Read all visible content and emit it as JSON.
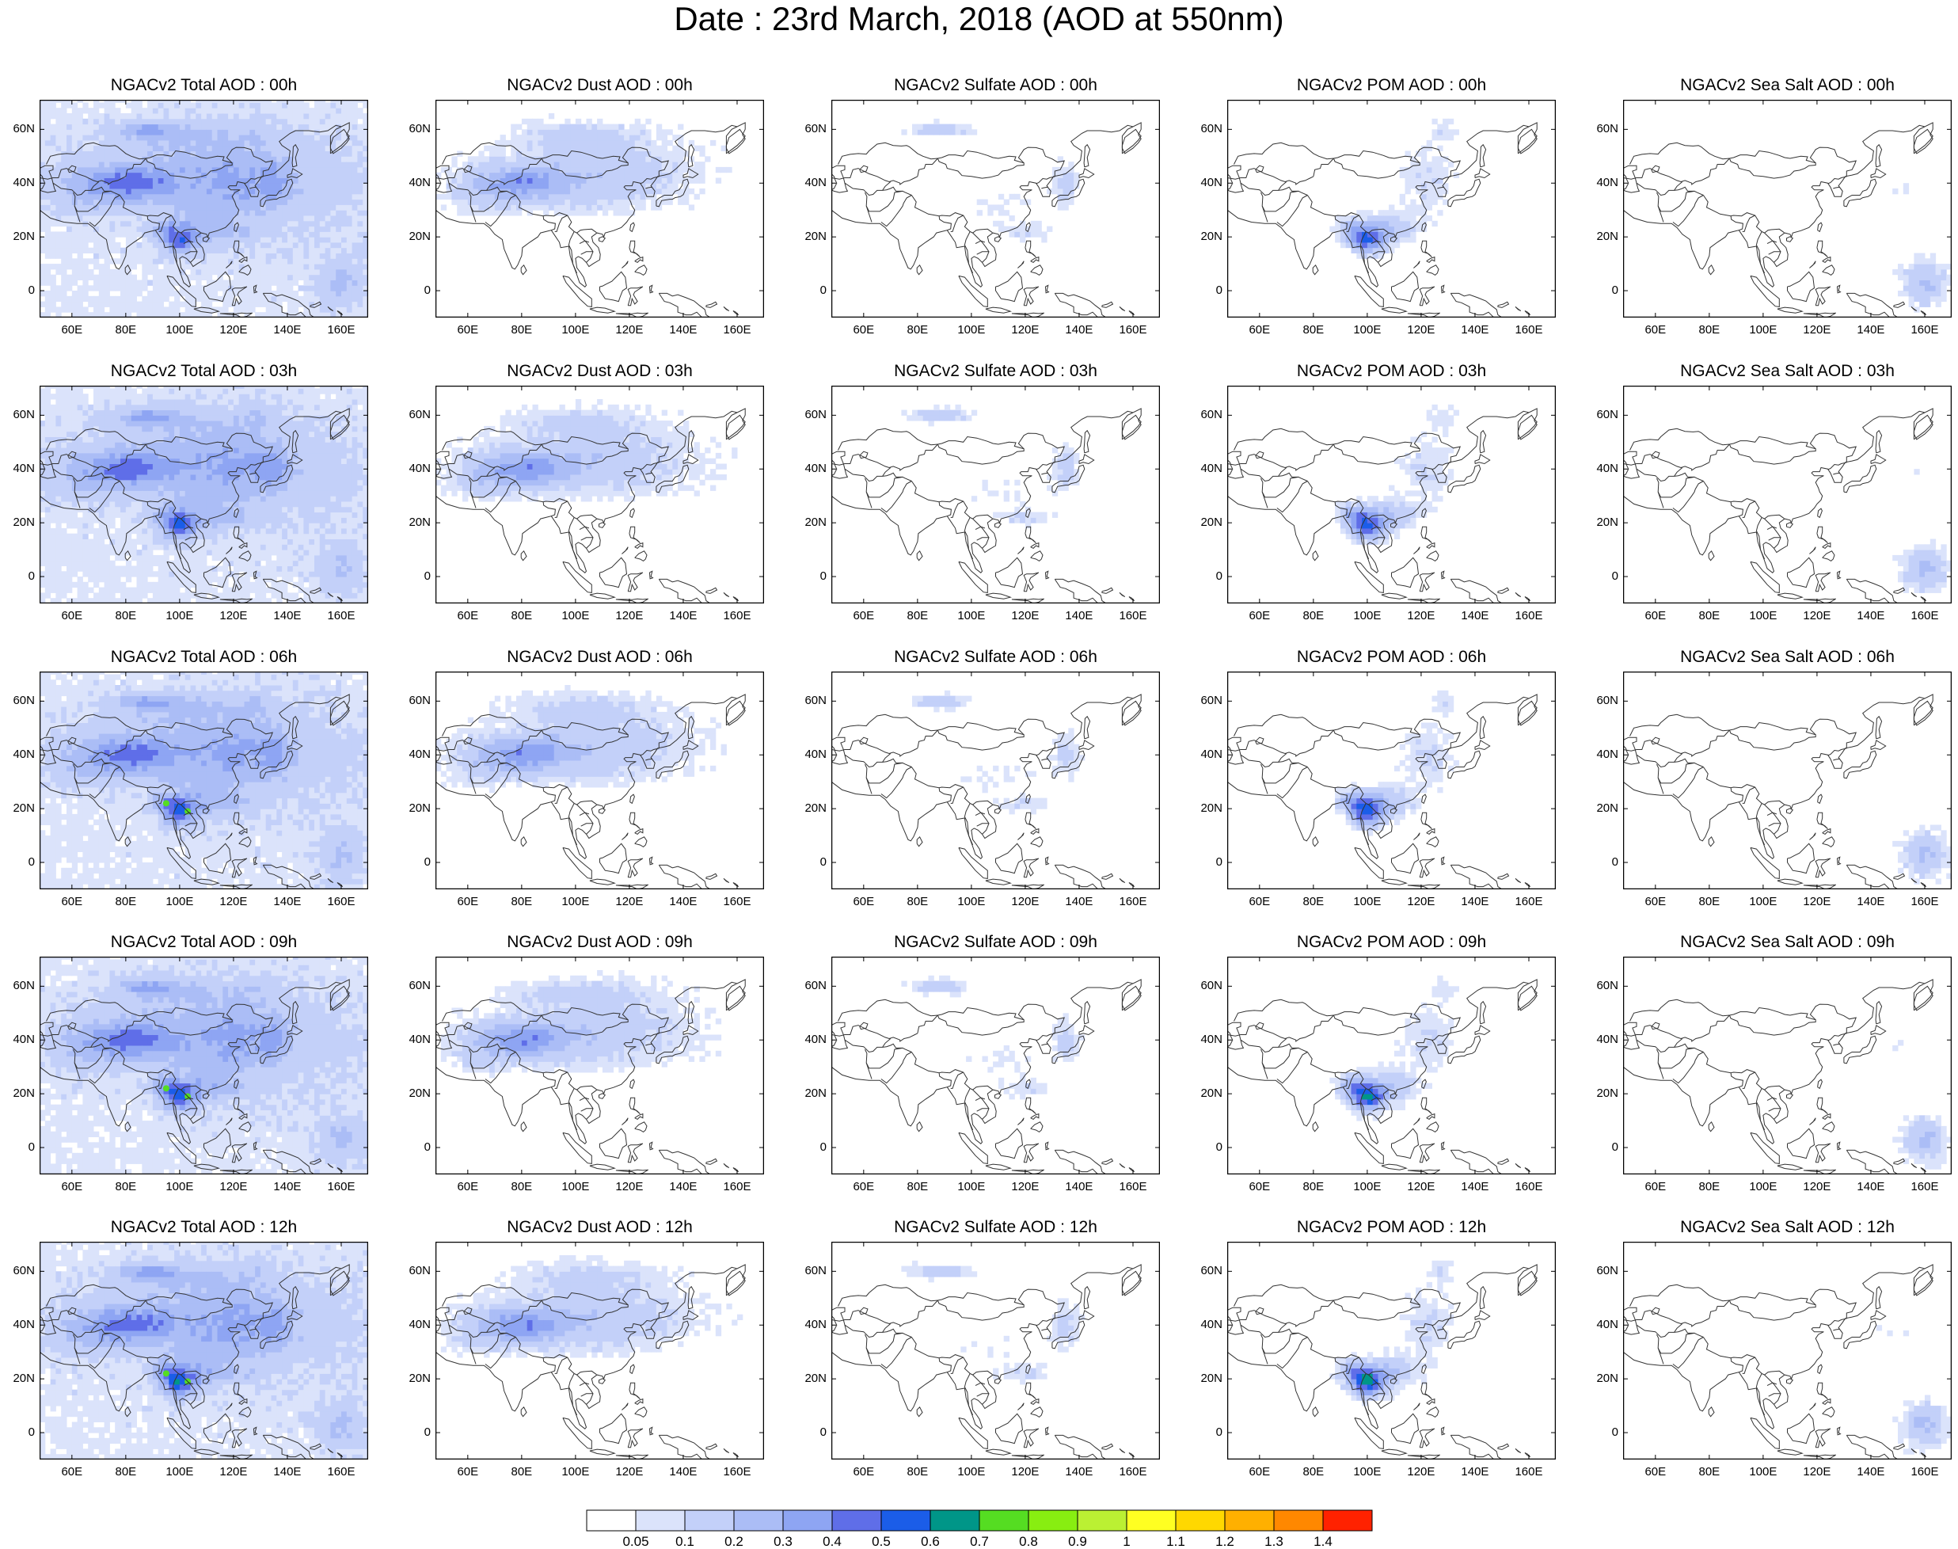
{
  "title": "Date : 23rd March, 2018 (AOD at 550nm)",
  "panels": [
    [
      "NGACv2 Total AOD : 00h",
      "NGACv2 Dust AOD : 00h",
      "NGACv2 Sulfate AOD : 00h",
      "NGACv2 POM AOD : 00h",
      "NGACv2 Sea Salt AOD : 00h"
    ],
    [
      "NGACv2 Total AOD : 03h",
      "NGACv2 Dust AOD : 03h",
      "NGACv2 Sulfate AOD : 03h",
      "NGACv2 POM AOD : 03h",
      "NGACv2 Sea Salt AOD : 03h"
    ],
    [
      "NGACv2 Total AOD : 06h",
      "NGACv2 Dust AOD : 06h",
      "NGACv2 Sulfate AOD : 06h",
      "NGACv2 POM AOD : 06h",
      "NGACv2 Sea Salt AOD : 06h"
    ],
    [
      "NGACv2 Total AOD : 09h",
      "NGACv2 Dust AOD : 09h",
      "NGACv2 Sulfate AOD : 09h",
      "NGACv2 POM AOD : 09h",
      "NGACv2 Sea Salt  AOD : 09h"
    ],
    [
      "NGACv2 Total AOD  : 12h",
      "NGACv2 Dust AOD : 12h",
      "NGACv2 Sulfate AOD : 12h",
      "NGACv2 POM  AOD : 12h",
      "NGACv2 Sea Salt  AOD : 12h"
    ]
  ],
  "lat_ticks": [
    "60N",
    "40N",
    "20N",
    "0"
  ],
  "lon_ticks": [
    "60E",
    "80E",
    "100E",
    "120E",
    "140E",
    "160E"
  ],
  "colorbar": {
    "labels": [
      "0.05",
      "0.1",
      "0.2",
      "0.3",
      "0.4",
      "0.5",
      "0.6",
      "0.7",
      "0.8",
      "0.9",
      "1",
      "1.1",
      "1.2",
      "1.3",
      "1.4"
    ],
    "colors": [
      "#ffffff",
      "#dbe3fb",
      "#c3d0f9",
      "#abbdf6",
      "#8ea5f3",
      "#5f6ee8",
      "#1b5de8",
      "#009688",
      "#55dd22",
      "#88ee11",
      "#bbf033",
      "#ffff22",
      "#ffd800",
      "#ffb000",
      "#ff8800",
      "#ff2200"
    ]
  }
}
